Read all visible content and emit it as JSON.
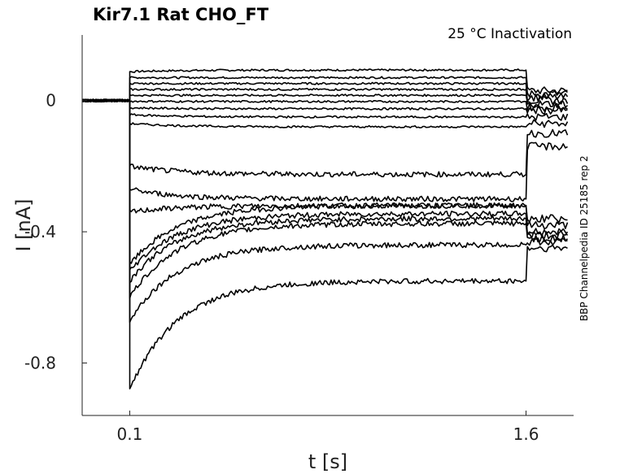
{
  "chart_data": {
    "type": "line",
    "title": "Kir7.1  Rat  CHO_FT",
    "subtitle": "25 °C  Inactivation",
    "side_label": "BBP Channelpedia ID 25185 rep 2",
    "xlabel": "t [s]",
    "ylabel": "I [nA]",
    "xlim": [
      -0.08,
      1.78
    ],
    "ylim": [
      -0.96,
      0.2
    ],
    "xticks": [
      0.1,
      1.6
    ],
    "xtick_labels": [
      "0.1",
      "1.6"
    ],
    "yticks": [
      0,
      -0.4,
      -0.8
    ],
    "ytick_labels": [
      "0",
      "-0.4",
      "-0.8"
    ],
    "grid": false,
    "line_color": "#000000",
    "step_start": 0.1,
    "step_end": 1.6,
    "series": [
      {
        "start": 0.088,
        "end": 0.093,
        "tail": 0.03
      },
      {
        "start": 0.07,
        "end": 0.07,
        "tail": 0.02
      },
      {
        "start": 0.052,
        "end": 0.052,
        "tail": 0.01
      },
      {
        "start": 0.034,
        "end": 0.034,
        "tail": 0.0
      },
      {
        "start": 0.016,
        "end": 0.016,
        "tail": -0.01
      },
      {
        "start": -0.002,
        "end": -0.003,
        "tail": -0.02
      },
      {
        "start": -0.022,
        "end": -0.025,
        "tail": -0.03
      },
      {
        "start": -0.043,
        "end": -0.05,
        "tail": -0.05
      },
      {
        "start": -0.07,
        "end": -0.08,
        "tail": -0.07
      },
      {
        "start": -0.2,
        "end": -0.225,
        "tail": -0.1
      },
      {
        "start": -0.27,
        "end": -0.3,
        "tail": -0.14
      },
      {
        "start": -0.34,
        "end": -0.32,
        "tail": -0.36
      },
      {
        "start": -0.5,
        "end": -0.32,
        "tail": -0.38
      },
      {
        "start": -0.52,
        "end": -0.345,
        "tail": -0.4
      },
      {
        "start": -0.55,
        "end": -0.36,
        "tail": -0.41
      },
      {
        "start": -0.6,
        "end": -0.375,
        "tail": -0.42
      },
      {
        "start": -0.67,
        "end": -0.44,
        "tail": -0.43
      },
      {
        "start": -0.88,
        "end": -0.55,
        "tail": -0.45
      }
    ]
  }
}
